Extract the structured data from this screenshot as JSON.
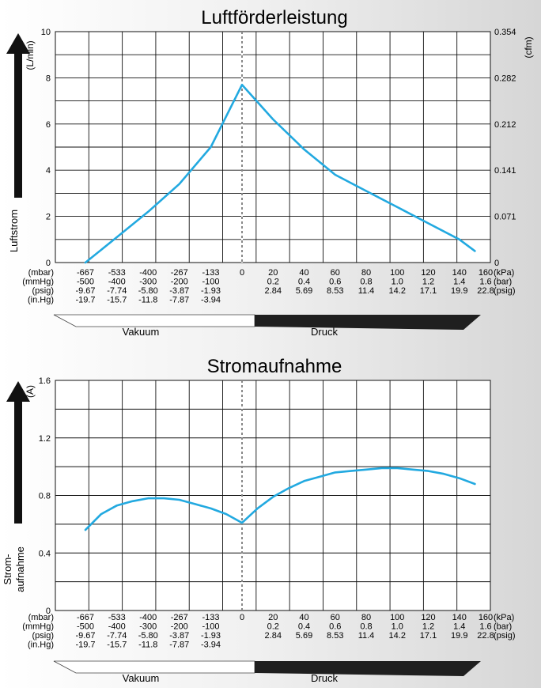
{
  "colors": {
    "curve": "#22a9e0",
    "grid": "#111111",
    "arrow": "#111111",
    "band_light": "#ffffff",
    "band_dark": "#1f1f1f"
  },
  "charts": [
    {
      "title": "Luftförderleistung",
      "y_left_unit": "(L/min)",
      "y_right_unit": "(cfm)",
      "y_axis_label": "Luftstrom",
      "y_ticks": [
        "0",
        "2",
        "4",
        "6",
        "8",
        "10"
      ],
      "y_right_ticks": [
        "0",
        "0.071",
        "0.141",
        "0.212",
        "0.282",
        "0.354"
      ],
      "vacuum_label": "Vakuum",
      "pressure_label": "Druck",
      "rows_left_units": [
        "(mbar)",
        "(mmHg)",
        "(psig)",
        "(in.Hg)"
      ],
      "vac_mbar": [
        "-667",
        "-533",
        "-400",
        "-267",
        "-133",
        "0"
      ],
      "vac_mmhg": [
        "-500",
        "-400",
        "-300",
        "-200",
        "-100"
      ],
      "vac_psig": [
        "-9.67",
        "-7.74",
        "-5.80",
        "-3.87",
        "-1.93"
      ],
      "vac_inhg": [
        "-19.7",
        "-15.7",
        "-11.8",
        "-7.87",
        "-3.94"
      ],
      "pres_kpa": [
        "20",
        "40",
        "60",
        "80",
        "100",
        "120",
        "140",
        "160"
      ],
      "pres_bar": [
        "0.2",
        "0.4",
        "0.6",
        "0.8",
        "1.0",
        "1.2",
        "1.4",
        "1.6"
      ],
      "pres_psig": [
        "2.84",
        "5.69",
        "8.53",
        "11.4",
        "14.2",
        "17.1",
        "19.9",
        "22.8"
      ],
      "unit_kpa": "(kPa)",
      "unit_bar": "(bar)",
      "unit_psig": "(psig)"
    },
    {
      "title": "Stromaufnahme",
      "y_left_unit": "(A)",
      "y_axis_label_1": "Strom-",
      "y_axis_label_2": "aufnahme",
      "y_ticks": [
        "0",
        "0.4",
        "0.8",
        "1.2",
        "1.6"
      ],
      "vacuum_label": "Vakuum",
      "pressure_label": "Druck",
      "rows_left_units": [
        "(mbar)",
        "(mmHg)",
        "(psig)",
        "(in.Hg)"
      ],
      "vac_mbar": [
        "-667",
        "-533",
        "-400",
        "-267",
        "-133",
        "0"
      ],
      "vac_mmhg": [
        "-500",
        "-400",
        "-300",
        "-200",
        "-100"
      ],
      "vac_psig": [
        "-9.67",
        "-7.74",
        "-5.80",
        "-3.87",
        "-1.93"
      ],
      "vac_inhg": [
        "-19.7",
        "-15.7",
        "-11.8",
        "-7.87",
        "-3.94"
      ],
      "pres_kpa": [
        "20",
        "40",
        "60",
        "80",
        "100",
        "120",
        "140",
        "160"
      ],
      "pres_bar": [
        "0.2",
        "0.4",
        "0.6",
        "0.8",
        "1.0",
        "1.2",
        "1.4",
        "1.6"
      ],
      "pres_psig": [
        "2.84",
        "5.69",
        "8.53",
        "11.4",
        "14.2",
        "17.1",
        "19.9",
        "22.8"
      ],
      "unit_kpa": "(kPa)",
      "unit_bar": "(bar)",
      "unit_psig": "(psig)"
    }
  ],
  "chart_data": [
    {
      "type": "line",
      "title": "Luftförderleistung",
      "xlabel": "",
      "ylabel": "Luftstrom (L/min)",
      "x": [
        -667,
        -533,
        -400,
        -267,
        -133,
        0,
        20,
        40,
        60,
        80,
        100,
        120,
        140,
        150
      ],
      "series": [
        {
          "values": [
            0.0,
            1.1,
            2.2,
            3.4,
            5.0,
            7.7,
            6.2,
            4.9,
            3.8,
            3.1,
            2.4,
            1.7,
            1.0,
            0.5
          ]
        }
      ],
      "xlim": [
        -750,
        160
      ],
      "ylim": [
        0,
        10
      ],
      "y_right_ticks": [
        0,
        0.071,
        0.141,
        0.212,
        0.282,
        0.354
      ],
      "grid": true
    },
    {
      "type": "line",
      "title": "Stromaufnahme",
      "xlabel": "",
      "ylabel": "Stromaufnahme (A)",
      "x": [
        -667,
        -600,
        -533,
        -467,
        -400,
        -333,
        -267,
        -200,
        -133,
        -67,
        0,
        10,
        20,
        30,
        40,
        50,
        60,
        70,
        80,
        90,
        100,
        110,
        120,
        130,
        140,
        150
      ],
      "series": [
        {
          "values": [
            0.56,
            0.67,
            0.73,
            0.76,
            0.78,
            0.78,
            0.77,
            0.74,
            0.71,
            0.67,
            0.61,
            0.71,
            0.79,
            0.85,
            0.9,
            0.93,
            0.96,
            0.97,
            0.98,
            0.99,
            0.99,
            0.98,
            0.97,
            0.95,
            0.92,
            0.88
          ]
        }
      ],
      "xlim": [
        -750,
        160
      ],
      "ylim": [
        0,
        1.6
      ],
      "grid": true
    }
  ]
}
